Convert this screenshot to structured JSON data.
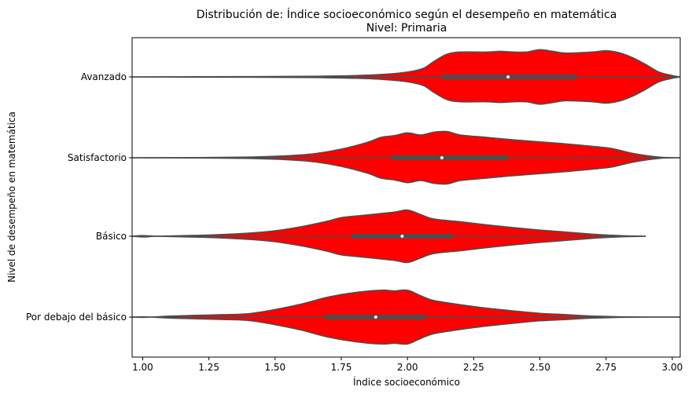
{
  "chart_data": {
    "type": "violin",
    "title": "Distribución de: Índice socioeconómico según el desempeño en matemática",
    "subtitle": "Nivel: Primaria",
    "xlabel": "Índice socioeconómico",
    "ylabel": "Nivel de desempeño en matemática",
    "xlim": [
      0.96,
      3.03
    ],
    "x_ticks": [
      1.0,
      1.25,
      1.5,
      1.75,
      2.0,
      2.25,
      2.5,
      2.75,
      3.0
    ],
    "x_tick_labels": [
      "1.00",
      "1.25",
      "1.50",
      "1.75",
      "2.00",
      "2.25",
      "2.50",
      "2.75",
      "3.00"
    ],
    "categories": [
      "Avanzado",
      "Satisfactorio",
      "Básico",
      "Por debajo del básico"
    ],
    "fill_color": "#ff0000",
    "edge_color": "#4d4d4d",
    "series": [
      {
        "category": "Avanzado",
        "q1": 2.13,
        "median": 2.38,
        "q3": 2.64,
        "min": 0.96,
        "max": 3.03,
        "density": [
          [
            0.96,
            0.0
          ],
          [
            1.2,
            0.005
          ],
          [
            1.4,
            0.01
          ],
          [
            1.6,
            0.015
          ],
          [
            1.7,
            0.025
          ],
          [
            1.8,
            0.04
          ],
          [
            1.9,
            0.07
          ],
          [
            2.0,
            0.14
          ],
          [
            2.06,
            0.25
          ],
          [
            2.1,
            0.45
          ],
          [
            2.15,
            0.66
          ],
          [
            2.2,
            0.72
          ],
          [
            2.3,
            0.72
          ],
          [
            2.35,
            0.74
          ],
          [
            2.4,
            0.72
          ],
          [
            2.45,
            0.72
          ],
          [
            2.5,
            0.79
          ],
          [
            2.55,
            0.74
          ],
          [
            2.6,
            0.69
          ],
          [
            2.7,
            0.72
          ],
          [
            2.75,
            0.76
          ],
          [
            2.8,
            0.7
          ],
          [
            2.85,
            0.56
          ],
          [
            2.9,
            0.36
          ],
          [
            2.95,
            0.14
          ],
          [
            3.0,
            0.04
          ],
          [
            3.03,
            0.0
          ]
        ]
      },
      {
        "category": "Satisfactorio",
        "q1": 1.94,
        "median": 2.13,
        "q3": 2.38,
        "min": 0.96,
        "max": 3.03,
        "density": [
          [
            0.96,
            0.0
          ],
          [
            1.2,
            0.005
          ],
          [
            1.4,
            0.02
          ],
          [
            1.55,
            0.06
          ],
          [
            1.65,
            0.12
          ],
          [
            1.75,
            0.25
          ],
          [
            1.85,
            0.45
          ],
          [
            1.9,
            0.59
          ],
          [
            1.95,
            0.64
          ],
          [
            2.0,
            0.72
          ],
          [
            2.05,
            0.66
          ],
          [
            2.1,
            0.74
          ],
          [
            2.15,
            0.76
          ],
          [
            2.2,
            0.66
          ],
          [
            2.3,
            0.59
          ],
          [
            2.4,
            0.52
          ],
          [
            2.5,
            0.46
          ],
          [
            2.6,
            0.4
          ],
          [
            2.7,
            0.33
          ],
          [
            2.77,
            0.27
          ],
          [
            2.85,
            0.13
          ],
          [
            2.95,
            0.02
          ],
          [
            3.03,
            0.0
          ]
        ]
      },
      {
        "category": "Básico",
        "q1": 1.79,
        "median": 1.98,
        "q3": 2.17,
        "min": 0.96,
        "max": 2.9,
        "density": [
          [
            0.96,
            0.0
          ],
          [
            1.0,
            0.02
          ],
          [
            1.05,
            0.0
          ],
          [
            1.1,
            0.01
          ],
          [
            1.2,
            0.025
          ],
          [
            1.3,
            0.05
          ],
          [
            1.4,
            0.09
          ],
          [
            1.5,
            0.16
          ],
          [
            1.6,
            0.28
          ],
          [
            1.7,
            0.44
          ],
          [
            1.75,
            0.54
          ],
          [
            1.85,
            0.62
          ],
          [
            1.95,
            0.7
          ],
          [
            2.0,
            0.76
          ],
          [
            2.05,
            0.63
          ],
          [
            2.1,
            0.5
          ],
          [
            2.2,
            0.42
          ],
          [
            2.3,
            0.33
          ],
          [
            2.4,
            0.25
          ],
          [
            2.5,
            0.18
          ],
          [
            2.6,
            0.12
          ],
          [
            2.7,
            0.06
          ],
          [
            2.8,
            0.02
          ],
          [
            2.9,
            0.0
          ]
        ]
      },
      {
        "category": "Por debajo del básico",
        "q1": 1.69,
        "median": 1.88,
        "q3": 2.07,
        "min": 0.96,
        "max": 3.03,
        "density": [
          [
            0.96,
            0.0
          ],
          [
            1.0,
            0.01
          ],
          [
            1.03,
            0.0
          ],
          [
            1.1,
            0.03
          ],
          [
            1.2,
            0.05
          ],
          [
            1.3,
            0.07
          ],
          [
            1.4,
            0.1
          ],
          [
            1.5,
            0.22
          ],
          [
            1.6,
            0.38
          ],
          [
            1.7,
            0.58
          ],
          [
            1.8,
            0.71
          ],
          [
            1.9,
            0.78
          ],
          [
            1.95,
            0.76
          ],
          [
            2.0,
            0.78
          ],
          [
            2.05,
            0.62
          ],
          [
            2.1,
            0.48
          ],
          [
            2.2,
            0.36
          ],
          [
            2.3,
            0.26
          ],
          [
            2.4,
            0.18
          ],
          [
            2.5,
            0.11
          ],
          [
            2.6,
            0.07
          ],
          [
            2.7,
            0.03
          ],
          [
            2.8,
            0.01
          ],
          [
            2.9,
            0.0
          ],
          [
            3.03,
            0.0
          ]
        ]
      }
    ]
  }
}
